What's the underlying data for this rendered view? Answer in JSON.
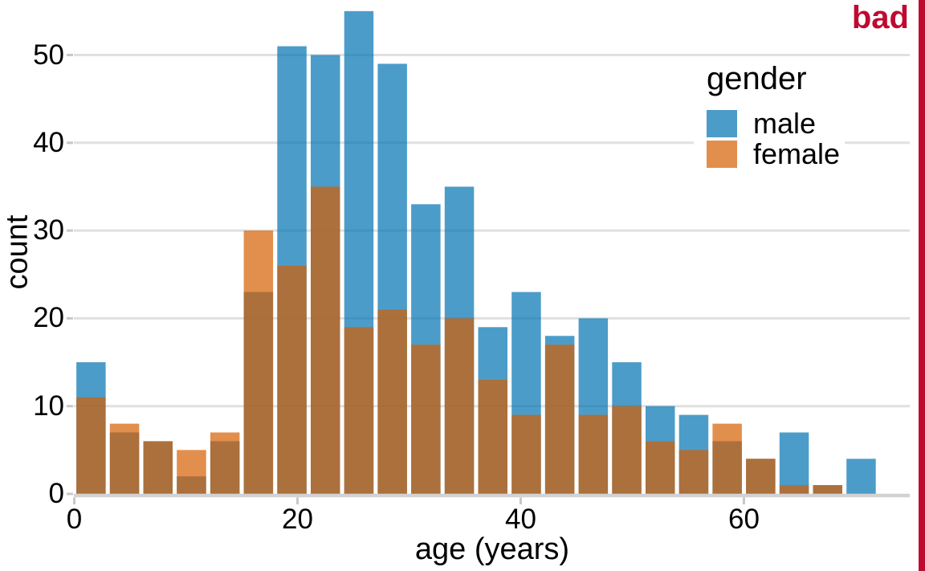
{
  "figure": {
    "annotation": "bad",
    "annotation_color": "#BF0A30",
    "background": "#FFFFFF"
  },
  "chart_data": {
    "type": "histogram",
    "variant": "overlapping-semitransparent-bars",
    "title": "",
    "xlabel": "age (years)",
    "ylabel": "count",
    "bin_width_years": 3,
    "bin_starts": [
      0,
      3,
      6,
      9,
      12,
      15,
      18,
      21,
      24,
      27,
      30,
      33,
      36,
      39,
      42,
      45,
      48,
      51,
      54,
      57,
      60,
      63,
      66,
      69
    ],
    "series": [
      {
        "name": "male",
        "color": "#0072B2",
        "opacity": 0.7,
        "rendered_over_white": "#4D9CC9",
        "values": [
          15,
          7,
          6,
          2,
          6,
          23,
          51,
          50,
          55,
          49,
          33,
          35,
          19,
          23,
          18,
          20,
          15,
          10,
          9,
          6,
          4,
          7,
          1,
          4
        ]
      },
      {
        "name": "female",
        "color": "#D55E00",
        "opacity": 0.7,
        "rendered_over_white": "#E28E4D",
        "values": [
          11,
          8,
          6,
          5,
          7,
          30,
          26,
          35,
          19,
          21,
          17,
          20,
          13,
          9,
          17,
          9,
          10,
          6,
          5,
          8,
          4,
          1,
          1,
          0
        ]
      }
    ],
    "overlap_rendered_color": "#AC713C",
    "x_ticks": [
      0,
      20,
      40,
      60
    ],
    "y_ticks": [
      0,
      10,
      20,
      30,
      40,
      50
    ],
    "xlim": [
      0,
      75
    ],
    "ylim": [
      0,
      56
    ],
    "grid": "horizontal-only",
    "legend": {
      "title": "gender",
      "position": "upper-right-inside"
    }
  }
}
